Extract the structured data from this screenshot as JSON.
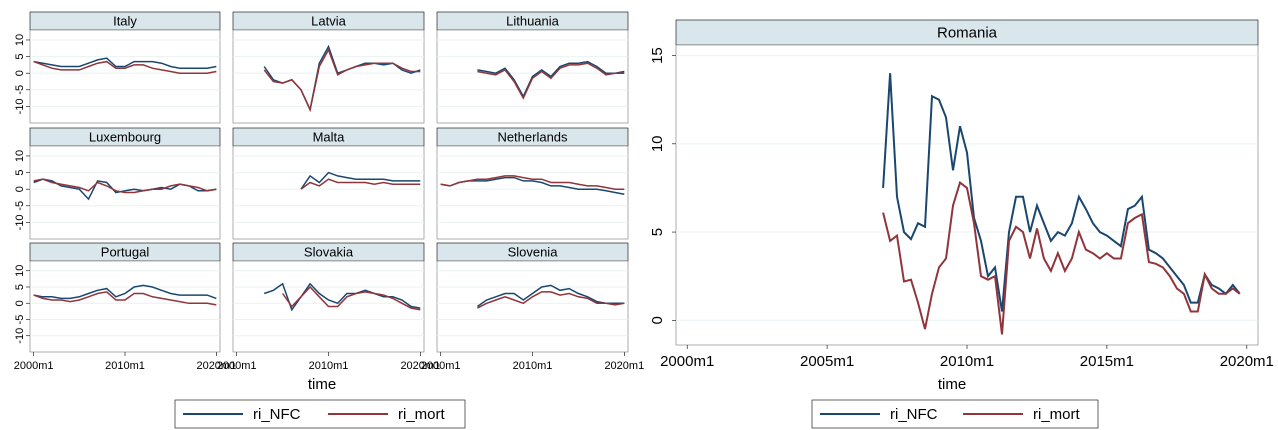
{
  "chart_data": [
    {
      "type": "line",
      "xlabel": "time",
      "xlim": [
        1999.6,
        2020.4
      ],
      "ylim": [
        -15,
        13
      ],
      "xticks": [
        {
          "value": 2000,
          "label": "2000m1"
        },
        {
          "value": 2010,
          "label": "2010m1"
        },
        {
          "value": 2020,
          "label": "2020m1"
        }
      ],
      "yticks": [
        -10,
        -5,
        0,
        5,
        10
      ],
      "grid": true,
      "series": [
        {
          "name": "ri_NFC",
          "color": "#1a476f"
        },
        {
          "name": "ri_mort",
          "color": "#90353b"
        }
      ],
      "x": [
        2000,
        2001,
        2002,
        2003,
        2004,
        2005,
        2006,
        2007,
        2008,
        2009,
        2010,
        2011,
        2012,
        2013,
        2014,
        2015,
        2016,
        2017,
        2018,
        2019,
        2020
      ],
      "panels": [
        {
          "title": "Italy",
          "values": [
            [
              3.5,
              3,
              2.5,
              2,
              2,
              2,
              3,
              4,
              4.5,
              2,
              2,
              3.5,
              3.5,
              3.5,
              3,
              2,
              1.5,
              1.5,
              1.5,
              1.5,
              2
            ],
            [
              3.5,
              2.5,
              1.5,
              1,
              1,
              1,
              2,
              3,
              3.5,
              1.5,
              1.5,
              2.5,
              2.5,
              1.5,
              1,
              0.5,
              0,
              0,
              0,
              0,
              0.5
            ]
          ]
        },
        {
          "title": "Latvia",
          "values": [
            [
              null,
              null,
              null,
              2,
              -2,
              -3,
              -2,
              -5,
              -11,
              3,
              8,
              0,
              1,
              2,
              3,
              3,
              2.5,
              3,
              1,
              0,
              1
            ],
            [
              null,
              null,
              null,
              1,
              -2.5,
              -3,
              -2,
              -5,
              -11,
              2,
              7,
              -0.5,
              1,
              2,
              2.5,
              3,
              3,
              3,
              1.5,
              0.5,
              0.5
            ]
          ]
        },
        {
          "title": "Lithuania",
          "values": [
            [
              null,
              null,
              null,
              null,
              1,
              0.5,
              0,
              1.5,
              -2,
              -7,
              -1,
              1,
              -1,
              2,
              3,
              3,
              3.5,
              2,
              0,
              0,
              0.5
            ],
            [
              null,
              null,
              null,
              null,
              0.5,
              0,
              -0.5,
              1,
              -2.5,
              -7.5,
              -1.5,
              0.5,
              -1.5,
              1.5,
              2.5,
              2.5,
              3,
              1.5,
              -0.5,
              0,
              0
            ]
          ]
        },
        {
          "title": "Luxembourg",
          "values": [
            [
              2,
              3,
              2.5,
              1,
              0.5,
              0,
              -3,
              2.5,
              2,
              -1,
              -0.5,
              0,
              -0.5,
              0,
              0.5,
              0,
              1.5,
              1,
              -0.5,
              -0.5,
              0
            ],
            [
              2.5,
              3,
              2,
              1.5,
              1,
              0.5,
              -0.5,
              2,
              1,
              -0.5,
              -1,
              -1,
              -0.5,
              0,
              0,
              1,
              1.5,
              1,
              0.5,
              -0.5,
              0
            ]
          ]
        },
        {
          "title": "Malta",
          "values": [
            [
              null,
              null,
              null,
              null,
              null,
              null,
              null,
              0,
              4,
              2,
              5,
              4,
              3.5,
              3,
              3,
              3,
              3,
              2.5,
              2.5,
              2.5,
              2.5
            ],
            [
              null,
              null,
              null,
              null,
              null,
              null,
              null,
              0,
              2,
              1,
              3,
              2,
              2,
              2,
              2,
              1.5,
              2,
              1.5,
              1.5,
              1.5,
              1.5
            ]
          ]
        },
        {
          "title": "Netherlands",
          "values": [
            [
              1.5,
              1,
              2,
              2.5,
              2.5,
              2.5,
              3,
              3.5,
              3.5,
              2.5,
              2.5,
              2,
              1,
              1,
              0.5,
              0,
              0,
              0,
              -0.5,
              -1,
              -1.5
            ],
            [
              1.5,
              1,
              2,
              2.5,
              3,
              3,
              3.5,
              4,
              4,
              3.5,
              3,
              3,
              2,
              2,
              2,
              1.5,
              1,
              1,
              0.5,
              0,
              0
            ]
          ]
        },
        {
          "title": "Portugal",
          "values": [
            [
              2.5,
              2,
              2,
              1.5,
              1.5,
              2,
              3,
              4,
              4.5,
              2,
              3,
              5,
              5.5,
              5,
              4,
              3,
              2.5,
              2.5,
              2.5,
              2.5,
              1.5
            ],
            [
              2.5,
              1.5,
              1,
              1,
              0.5,
              1,
              2,
              3,
              3.5,
              1,
              1,
              3,
              3,
              2,
              1.5,
              1,
              0.5,
              0,
              0,
              0,
              -0.5
            ]
          ]
        },
        {
          "title": "Slovakia",
          "values": [
            [
              null,
              null,
              null,
              3,
              4,
              6,
              -2,
              2,
              6,
              3,
              1,
              0,
              3,
              3,
              4,
              3,
              2,
              2,
              1,
              -1,
              -1.5
            ],
            [
              null,
              null,
              null,
              null,
              null,
              3,
              -1,
              2,
              5,
              2,
              -1,
              -1,
              2,
              3,
              3.5,
              3,
              2.5,
              1.5,
              0,
              -1.5,
              -2
            ]
          ]
        },
        {
          "title": "Slovenia",
          "values": [
            [
              null,
              null,
              null,
              null,
              -1,
              1,
              2,
              3,
              3,
              1,
              3,
              5,
              5.5,
              4,
              4.5,
              3,
              2,
              0.5,
              0,
              0,
              0
            ],
            [
              null,
              null,
              null,
              null,
              -1.5,
              0,
              1,
              2,
              1,
              0,
              2,
              3.5,
              3.5,
              2.5,
              3,
              2,
              1.5,
              0,
              0,
              -0.5,
              0
            ]
          ]
        }
      ]
    },
    {
      "type": "line",
      "title": "Romania",
      "xlabel": "time",
      "xlim": [
        1999.6,
        2020.4
      ],
      "ylim": [
        -1.4,
        15.6
      ],
      "xticks": [
        {
          "value": 2000,
          "label": "2000m1"
        },
        {
          "value": 2005,
          "label": "2005m1"
        },
        {
          "value": 2010,
          "label": "2010m1"
        },
        {
          "value": 2015,
          "label": "2015m1"
        },
        {
          "value": 2020,
          "label": "2020m1"
        }
      ],
      "yticks": [
        0,
        5,
        10,
        15
      ],
      "grid": true,
      "x": [
        2007,
        2007.25,
        2007.5,
        2007.75,
        2008,
        2008.25,
        2008.5,
        2008.75,
        2009,
        2009.25,
        2009.5,
        2009.75,
        2010,
        2010.25,
        2010.5,
        2010.75,
        2011,
        2011.25,
        2011.5,
        2011.75,
        2012,
        2012.25,
        2012.5,
        2012.75,
        2013,
        2013.25,
        2013.5,
        2013.75,
        2014,
        2014.25,
        2014.5,
        2014.75,
        2015,
        2015.25,
        2015.5,
        2015.75,
        2016,
        2016.25,
        2016.5,
        2016.75,
        2017,
        2017.25,
        2017.5,
        2017.75,
        2018,
        2018.25,
        2018.5,
        2018.75,
        2019,
        2019.25,
        2019.5,
        2019.75
      ],
      "series": [
        {
          "name": "ri_NFC",
          "color": "#1a476f",
          "values": [
            7.5,
            14,
            7,
            5,
            4.6,
            5.5,
            5.3,
            12.7,
            12.5,
            11.5,
            8.5,
            11,
            9.5,
            5.8,
            4.5,
            2.5,
            3,
            0.5,
            5,
            7,
            7,
            5,
            6.5,
            5.5,
            4.5,
            5,
            4.8,
            5.5,
            7,
            6.3,
            5.5,
            5,
            4.8,
            4.5,
            4.2,
            6.3,
            6.5,
            7,
            4,
            3.8,
            3.5,
            3,
            2.5,
            2,
            1,
            1,
            2.6,
            2,
            1.8,
            1.5,
            2,
            1.5
          ]
        },
        {
          "name": "ri_mort",
          "color": "#90353b",
          "values": [
            6.1,
            4.5,
            4.8,
            2.2,
            2.3,
            1,
            -0.5,
            1.5,
            3,
            3.5,
            6.5,
            7.8,
            7.5,
            5.5,
            2.5,
            2.3,
            2.5,
            -0.8,
            4.5,
            5.3,
            5,
            3.5,
            5.2,
            3.5,
            2.8,
            3.8,
            2.8,
            3.5,
            5,
            4,
            3.8,
            3.5,
            3.8,
            3.5,
            3.5,
            5.5,
            5.8,
            6,
            3.3,
            3.2,
            3,
            2.5,
            1.8,
            1.5,
            0.5,
            0.5,
            2.6,
            1.8,
            1.5,
            1.5,
            1.8,
            1.5
          ]
        }
      ]
    }
  ]
}
